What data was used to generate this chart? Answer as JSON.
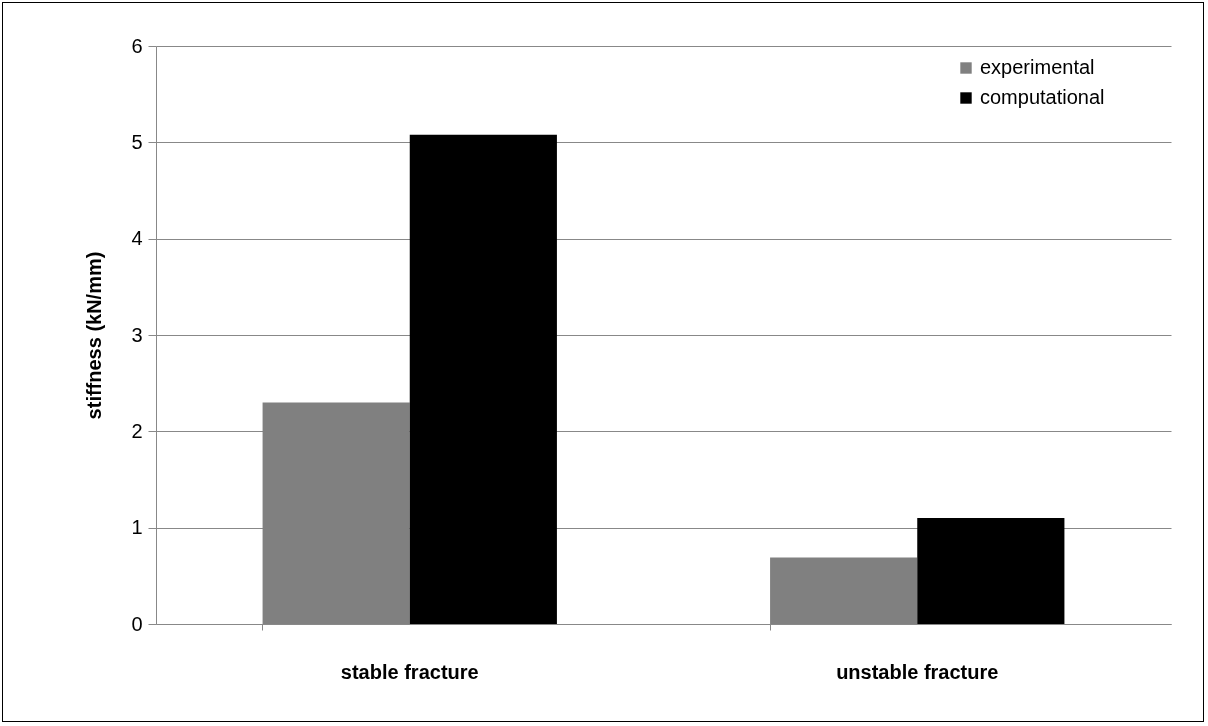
{
  "chart_data": {
    "type": "bar",
    "ylabel": "stiffness (kN/mm)",
    "categories": [
      "stable fracture",
      "unstable fracture"
    ],
    "series": [
      {
        "name": "experimental",
        "color": "#808080",
        "values": [
          2.3,
          0.69
        ]
      },
      {
        "name": "computational",
        "color": "#000000",
        "values": [
          5.08,
          1.1
        ]
      }
    ],
    "ylim": [
      0,
      6
    ],
    "yticks": [
      0,
      1,
      2,
      3,
      4,
      5,
      6
    ],
    "grid": "y",
    "legend": "top right"
  }
}
